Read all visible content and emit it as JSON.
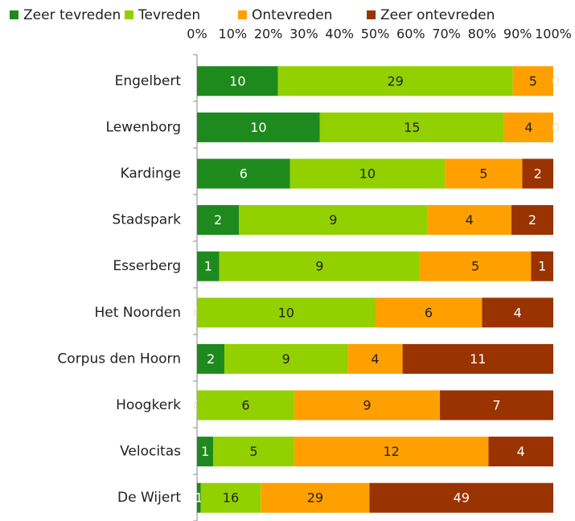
{
  "chart_data": {
    "type": "bar",
    "orientation": "horizontal",
    "stacking": "percent",
    "categories": [
      "Engelbert",
      "Lewenborg",
      "Kardinge",
      "Stadspark",
      "Esserberg",
      "Het Noorden",
      "Corpus den Hoorn",
      "Hoogkerk",
      "Velocitas",
      "De Wijert"
    ],
    "series": [
      {
        "name": "Zeer tevreden",
        "color": "#1e8a1e",
        "values": [
          10,
          10,
          6,
          2,
          1,
          0,
          2,
          0,
          1,
          1
        ]
      },
      {
        "name": "Tevreden",
        "color": "#92d000",
        "values": [
          29,
          15,
          10,
          9,
          9,
          10,
          9,
          6,
          5,
          16
        ]
      },
      {
        "name": "Ontevreden",
        "color": "#ffa000",
        "values": [
          5,
          4,
          5,
          4,
          5,
          6,
          4,
          9,
          12,
          29
        ]
      },
      {
        "name": "Zeer ontevreden",
        "color": "#993300",
        "values": [
          0,
          0,
          2,
          2,
          1,
          4,
          11,
          7,
          4,
          49
        ]
      }
    ],
    "xlim": [
      0,
      100
    ],
    "xticks": [
      {
        "value": 0,
        "label": "0%"
      },
      {
        "value": 10,
        "label": "10%"
      },
      {
        "value": 20,
        "label": "20%"
      },
      {
        "value": 30,
        "label": "30%"
      },
      {
        "value": 40,
        "label": "40%"
      },
      {
        "value": 50,
        "label": "50%"
      },
      {
        "value": 60,
        "label": "60%"
      },
      {
        "value": 70,
        "label": "70%"
      },
      {
        "value": 80,
        "label": "80%"
      },
      {
        "value": 90,
        "label": "90%"
      },
      {
        "value": 100,
        "label": "100%"
      }
    ],
    "legend": "top"
  }
}
